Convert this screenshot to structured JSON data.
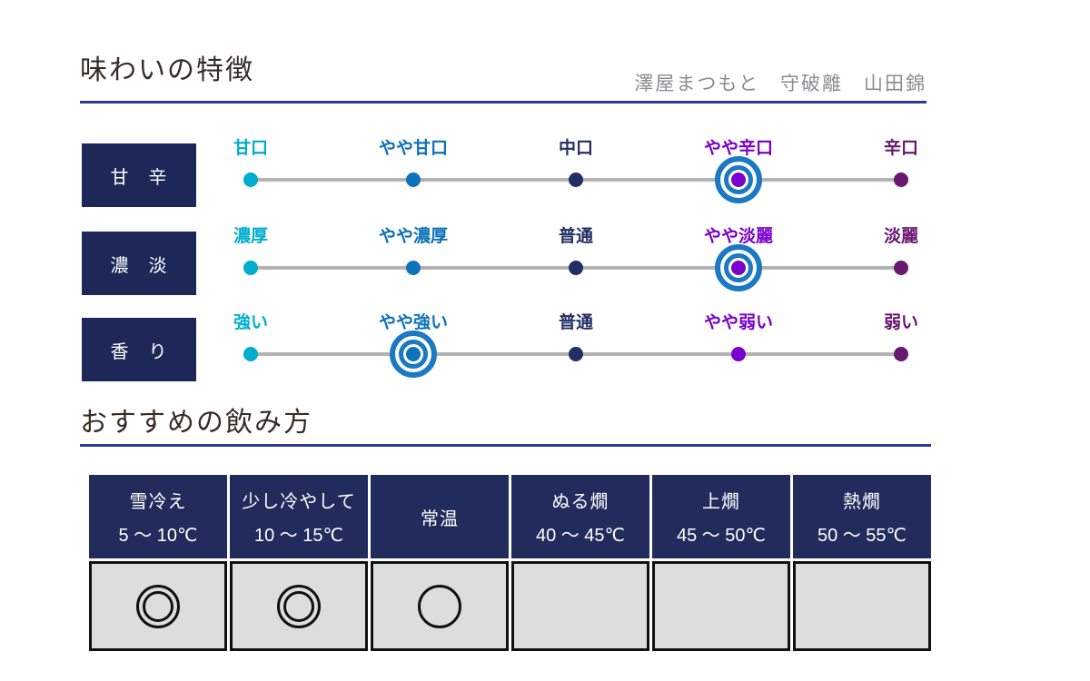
{
  "header": {
    "title": "味わいの特徴",
    "product": "澤屋まつもと　守破離　山田錦",
    "underline_color": "#2c3a94",
    "title_color": "#382c24",
    "product_color": "#8b8b92"
  },
  "section2": {
    "title": "おすすめの飲み方"
  },
  "scales": {
    "level_colors": [
      "#00adcd",
      "#0e72b8",
      "#232f64",
      "#7a00cd",
      "#69186f"
    ],
    "selected_ring_color": "#1a79c2",
    "line_color": "#b3b3b3",
    "axis_box_color": "#1e2858",
    "rows": [
      {
        "name": "甘　辛",
        "levels": [
          "甘口",
          "やや甘口",
          "中口",
          "やや辛口",
          "辛口"
        ],
        "selected": 3,
        "selected_label": "やや辛口"
      },
      {
        "name": "濃　淡",
        "levels": [
          "濃厚",
          "やや濃厚",
          "普通",
          "やや淡麗",
          "淡麗"
        ],
        "selected": 3,
        "selected_label": "やや淡麗"
      },
      {
        "name": "香　り",
        "levels": [
          "強い",
          "やや強い",
          "普通",
          "やや弱い",
          "弱い"
        ],
        "selected": 1,
        "selected_label": "やや強い"
      }
    ]
  },
  "serving": {
    "header_bg": "#222c5c",
    "cell_bg": "#dcdede",
    "columns": [
      {
        "name": "雪冷え",
        "temp": "5 ～ 10℃",
        "mark": "double-circle"
      },
      {
        "name": "少し冷やして",
        "temp": "10 ～ 15℃",
        "mark": "double-circle"
      },
      {
        "name": "常温",
        "temp": "",
        "mark": "circle"
      },
      {
        "name": "ぬる燗",
        "temp": "40 ～ 45℃",
        "mark": ""
      },
      {
        "name": "上燗",
        "temp": "45 ～ 50℃",
        "mark": ""
      },
      {
        "name": "熱燗",
        "temp": "50 ～ 55℃",
        "mark": ""
      }
    ]
  },
  "chart_data": [
    {
      "type": "scale",
      "title": "味わいの特徴",
      "name": "甘辛",
      "categories": [
        "甘口",
        "やや甘口",
        "中口",
        "やや辛口",
        "辛口"
      ],
      "selected": "やや辛口",
      "selected_index": 3
    },
    {
      "type": "scale",
      "title": "味わいの特徴",
      "name": "濃淡",
      "categories": [
        "濃厚",
        "やや濃厚",
        "普通",
        "やや淡麗",
        "淡麗"
      ],
      "selected": "やや淡麗",
      "selected_index": 3
    },
    {
      "type": "scale",
      "title": "味わいの特徴",
      "name": "香り",
      "categories": [
        "強い",
        "やや強い",
        "普通",
        "やや弱い",
        "弱い"
      ],
      "selected": "やや強い",
      "selected_index": 1
    },
    {
      "type": "table",
      "title": "おすすめの飲み方",
      "categories": [
        "雪冷え 5～10℃",
        "少し冷やして 10～15℃",
        "常温",
        "ぬる燗 40～45℃",
        "上燗 45～50℃",
        "熱燗 50～55℃"
      ],
      "values": [
        "◎",
        "◎",
        "○",
        "",
        "",
        ""
      ]
    }
  ]
}
